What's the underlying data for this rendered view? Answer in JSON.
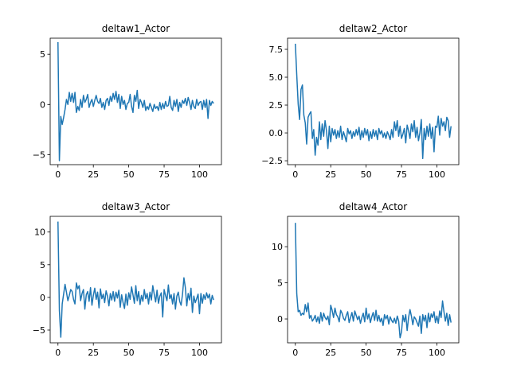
{
  "chart_data": [
    {
      "type": "line",
      "title": "deltaw1_Actor",
      "color": "#1f77b4",
      "x": [
        0,
        1,
        2,
        3,
        4,
        5,
        6,
        7,
        8,
        9,
        10,
        11,
        12,
        13,
        14,
        15,
        16,
        17,
        18,
        19,
        20,
        21,
        22,
        23,
        24,
        25,
        26,
        27,
        28,
        29,
        30,
        31,
        32,
        33,
        34,
        35,
        36,
        37,
        38,
        39,
        40,
        41,
        42,
        43,
        44,
        45,
        46,
        47,
        48,
        49,
        50,
        51,
        52,
        53,
        54,
        55,
        56,
        57,
        58,
        59,
        60,
        61,
        62,
        63,
        64,
        65,
        66,
        67,
        68,
        69,
        70,
        71,
        72,
        73,
        74,
        75,
        76,
        77,
        78,
        79,
        80,
        81,
        82,
        83,
        84,
        85,
        86,
        87,
        88,
        89,
        90,
        91,
        92,
        93,
        94,
        95,
        96,
        97,
        98,
        99,
        100,
        101,
        102,
        103,
        104,
        105,
        106,
        107,
        108,
        109,
        110
      ],
      "values": [
        6.2,
        -5.6,
        -1.2,
        -2.0,
        -1.3,
        -0.5,
        0.5,
        0.0,
        1.2,
        0.3,
        1.1,
        0.2,
        1.2,
        -0.8,
        -0.2,
        -0.6,
        0.5,
        -0.3,
        0.9,
        0.2,
        0.5,
        1.0,
        -0.3,
        0.2,
        0.5,
        -0.2,
        0.4,
        0.9,
        0.3,
        0.1,
        0.6,
        -0.3,
        0.2,
        -0.5,
        0.4,
        0.6,
        -0.1,
        0.8,
        0.3,
        1.1,
        0.5,
        1.3,
        0.2,
        1.0,
        -0.4,
        0.8,
        0.0,
        0.4,
        -0.5,
        0.1,
        0.2,
        1.0,
        -0.2,
        -0.8,
        0.9,
        0.3,
        1.4,
        -0.4,
        0.5,
        0.2,
        -0.3,
        0.4,
        -0.6,
        -0.2,
        -0.5,
        0.1,
        -0.3,
        -0.7,
        0.0,
        -0.4,
        -0.2,
        -0.6,
        0.2,
        -0.5,
        0.1,
        -0.4,
        0.3,
        -0.2,
        -0.1,
        0.8,
        -0.3,
        -0.6,
        0.4,
        -0.2,
        0.5,
        -0.7,
        0.2,
        -0.3,
        0.4,
        0.1,
        0.6,
        -0.1,
        0.7,
        0.2,
        -0.5,
        0.4,
        -0.2,
        -0.4,
        0.5,
        -0.1,
        0.2,
        0.3,
        -0.5,
        0.4,
        -0.3,
        0.5,
        -1.4,
        0.4,
        -0.1,
        0.3,
        0.1
      ],
      "xlim": [
        -5.5,
        115.5
      ],
      "xticks": [
        0,
        25,
        50,
        75,
        100
      ],
      "ylim": [
        -6.0,
        6.6
      ],
      "yticks": [
        {
          "value": -5,
          "label": "−5"
        },
        0,
        5
      ]
    },
    {
      "type": "line",
      "title": "deltaw2_Actor",
      "color": "#1f77b4",
      "x": [
        0,
        1,
        2,
        3,
        4,
        5,
        6,
        7,
        8,
        9,
        10,
        11,
        12,
        13,
        14,
        15,
        16,
        17,
        18,
        19,
        20,
        21,
        22,
        23,
        24,
        25,
        26,
        27,
        28,
        29,
        30,
        31,
        32,
        33,
        34,
        35,
        36,
        37,
        38,
        39,
        40,
        41,
        42,
        43,
        44,
        45,
        46,
        47,
        48,
        49,
        50,
        51,
        52,
        53,
        54,
        55,
        56,
        57,
        58,
        59,
        60,
        61,
        62,
        63,
        64,
        65,
        66,
        67,
        68,
        69,
        70,
        71,
        72,
        73,
        74,
        75,
        76,
        77,
        78,
        79,
        80,
        81,
        82,
        83,
        84,
        85,
        86,
        87,
        88,
        89,
        90,
        91,
        92,
        93,
        94,
        95,
        96,
        97,
        98,
        99,
        100,
        101,
        102,
        103,
        104,
        105,
        106,
        107,
        108,
        109,
        110
      ],
      "values": [
        8.0,
        5.2,
        2.6,
        1.2,
        3.9,
        4.3,
        1.6,
        0.9,
        -1.0,
        1.4,
        1.7,
        1.9,
        -0.5,
        0.3,
        -2.0,
        -0.4,
        -1.1,
        1.0,
        -0.6,
        0.8,
        -0.3,
        1.1,
        0.2,
        -1.4,
        0.6,
        -0.8,
        0.4,
        -0.2,
        0.3,
        -0.5,
        0.2,
        -0.4,
        0.6,
        -0.6,
        0.1,
        -0.3,
        -0.8,
        0.4,
        -0.1,
        0.2,
        -0.5,
        0.1,
        -0.3,
        0.3,
        -0.2,
        0.5,
        -0.6,
        0.2,
        -0.4,
        0.4,
        -0.2,
        0.3,
        -0.7,
        0.1,
        -0.5,
        0.3,
        -0.3,
        0.2,
        -0.6,
        0.4,
        -0.1,
        0.2,
        -0.4,
        0.0,
        -0.5,
        0.1,
        -0.2,
        -0.6,
        0.3,
        -0.4,
        1.0,
        0.2,
        1.1,
        -0.3,
        0.6,
        -0.5,
        -0.1,
        0.4,
        -0.9,
        0.7,
        0.2,
        -0.5,
        0.8,
        0.1,
        1.1,
        -0.4,
        0.5,
        -0.7,
        0.0,
        1.2,
        -2.3,
        0.4,
        -0.6,
        0.6,
        -0.3,
        0.8,
        -0.5,
        0.5,
        -1.7,
        0.6,
        0.5,
        1.5,
        -0.2,
        1.3,
        0.6,
        1.0,
        0.2,
        1.4,
        1.1,
        -0.4,
        0.6
      ],
      "xlim": [
        -5.5,
        115.5
      ],
      "xticks": [
        0,
        25,
        50,
        75,
        100
      ],
      "ylim": [
        -2.85,
        8.5
      ],
      "yticks": [
        {
          "value": -2.5,
          "label": "−2.5"
        },
        {
          "value": 0,
          "label": "0.0"
        },
        2.5,
        {
          "value": 5,
          "label": "5.0"
        },
        7.5
      ]
    },
    {
      "type": "line",
      "title": "deltaw3_Actor",
      "color": "#1f77b4",
      "x": [
        0,
        1,
        2,
        3,
        4,
        5,
        6,
        7,
        8,
        9,
        10,
        11,
        12,
        13,
        14,
        15,
        16,
        17,
        18,
        19,
        20,
        21,
        22,
        23,
        24,
        25,
        26,
        27,
        28,
        29,
        30,
        31,
        32,
        33,
        34,
        35,
        36,
        37,
        38,
        39,
        40,
        41,
        42,
        43,
        44,
        45,
        46,
        47,
        48,
        49,
        50,
        51,
        52,
        53,
        54,
        55,
        56,
        57,
        58,
        59,
        60,
        61,
        62,
        63,
        64,
        65,
        66,
        67,
        68,
        69,
        70,
        71,
        72,
        73,
        74,
        75,
        76,
        77,
        78,
        79,
        80,
        81,
        82,
        83,
        84,
        85,
        86,
        87,
        88,
        89,
        90,
        91,
        92,
        93,
        94,
        95,
        96,
        97,
        98,
        99,
        100,
        101,
        102,
        103,
        104,
        105,
        106,
        107,
        108,
        109,
        110
      ],
      "values": [
        11.6,
        -2.0,
        -6.1,
        -1.0,
        0.5,
        2.0,
        0.8,
        -0.5,
        0.3,
        1.2,
        0.9,
        -0.3,
        -1.0,
        2.2,
        1.3,
        1.8,
        -0.5,
        0.6,
        1.2,
        -1.8,
        0.4,
        0.9,
        -0.6,
        1.5,
        -1.2,
        0.3,
        1.4,
        -0.3,
        0.8,
        -1.6,
        1.3,
        -0.2,
        0.5,
        -0.8,
        1.0,
        0.2,
        -1.3,
        0.6,
        -0.4,
        0.9,
        -0.6,
        0.8,
        -0.1,
        1.1,
        -1.5,
        0.4,
        -0.8,
        -1.7,
        0.5,
        -1.2,
        0.7,
        -0.3,
        1.6,
        0.4,
        -0.9,
        1.8,
        -0.5,
        0.9,
        -1.1,
        0.3,
        -0.6,
        1.2,
        -0.2,
        0.6,
        -1.0,
        0.8,
        -0.4,
        1.8,
        0.5,
        -0.7,
        1.1,
        -0.9,
        0.2,
        0.7,
        -3.0,
        1.2,
        0.3,
        -0.5,
        1.9,
        -0.2,
        0.4,
        -1.0,
        0.6,
        -1.8,
        0.2,
        0.8,
        -0.6,
        -1.2,
        0.5,
        3.0,
        1.5,
        -1.3,
        0.6,
        -0.4,
        1.4,
        -2.3,
        0.2,
        -0.8,
        -0.2,
        0.5,
        -2.5,
        0.6,
        -0.9,
        0.4,
        -0.3,
        0.7,
        -0.1,
        0.5,
        -1.0,
        0.3,
        -0.4
      ],
      "xlim": [
        -5.5,
        115.5
      ],
      "xticks": [
        0,
        25,
        50,
        75,
        100
      ],
      "ylim": [
        -6.95,
        12.4
      ],
      "yticks": [
        {
          "value": -5,
          "label": "−5"
        },
        0,
        5,
        10
      ]
    },
    {
      "type": "line",
      "title": "deltaw4_Actor",
      "color": "#1f77b4",
      "x": [
        0,
        1,
        2,
        3,
        4,
        5,
        6,
        7,
        8,
        9,
        10,
        11,
        12,
        13,
        14,
        15,
        16,
        17,
        18,
        19,
        20,
        21,
        22,
        23,
        24,
        25,
        26,
        27,
        28,
        29,
        30,
        31,
        32,
        33,
        34,
        35,
        36,
        37,
        38,
        39,
        40,
        41,
        42,
        43,
        44,
        45,
        46,
        47,
        48,
        49,
        50,
        51,
        52,
        53,
        54,
        55,
        56,
        57,
        58,
        59,
        60,
        61,
        62,
        63,
        64,
        65,
        66,
        67,
        68,
        69,
        70,
        71,
        72,
        73,
        74,
        75,
        76,
        77,
        78,
        79,
        80,
        81,
        82,
        83,
        84,
        85,
        86,
        87,
        88,
        89,
        90,
        91,
        92,
        93,
        94,
        95,
        96,
        97,
        98,
        99,
        100,
        101,
        102,
        103,
        104,
        105,
        106,
        107,
        108,
        109,
        110
      ],
      "values": [
        13.3,
        3.5,
        1.0,
        1.2,
        0.5,
        0.8,
        0.6,
        2.0,
        1.0,
        2.2,
        0.1,
        0.5,
        -0.3,
        0.0,
        0.5,
        -0.4,
        0.3,
        -0.6,
        0.9,
        -0.3,
        0.8,
        0.2,
        -0.1,
        0.4,
        -0.8,
        1.9,
        1.2,
        0.2,
        1.5,
        0.6,
        0.3,
        -0.4,
        1.2,
        0.8,
        0.1,
        -0.2,
        0.5,
        1.0,
        -0.5,
        0.2,
        0.9,
        -0.3,
        1.1,
        0.5,
        -0.1,
        0.4,
        -0.6,
        0.2,
        0.8,
        -0.4,
        1.5,
        0.0,
        0.7,
        -0.5,
        0.3,
        0.9,
        -0.2,
        1.2,
        -0.3,
        0.5,
        -0.4,
        0.1,
        -0.9,
        0.6,
        0.0,
        0.5,
        -0.7,
        0.3,
        -0.2,
        -0.5,
        0.1,
        -0.6,
        0.4,
        -0.3,
        -2.6,
        -1.8,
        0.5,
        -0.4,
        0.6,
        -1.6,
        0.2,
        1.3,
        0.4,
        -0.8,
        0.3,
        0.0,
        -0.5,
        -1.0,
        0.4,
        -2.0,
        0.6,
        -0.3,
        0.5,
        -1.2,
        0.8,
        -0.4,
        0.7,
        0.2,
        1.0,
        -0.5,
        0.4,
        -0.6,
        1.1,
        0.2,
        2.5,
        1.0,
        -0.3,
        0.8,
        -0.9,
        0.6,
        -0.5
      ],
      "xlim": [
        -5.5,
        115.5
      ],
      "xticks": [
        0,
        25,
        50,
        75,
        100
      ],
      "ylim": [
        -3.3,
        14.2
      ],
      "yticks": [
        0,
        5,
        10
      ]
    }
  ]
}
